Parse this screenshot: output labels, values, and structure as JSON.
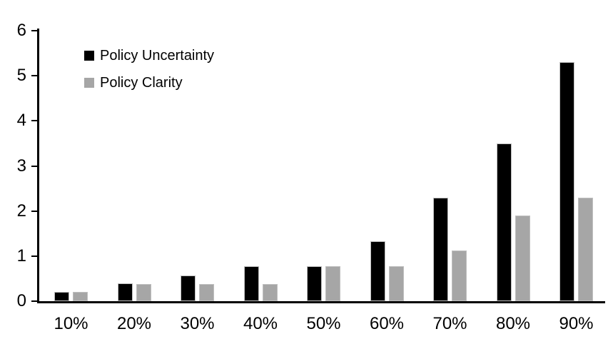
{
  "chart_data": {
    "type": "bar",
    "title": "",
    "xlabel": "",
    "ylabel": "",
    "categories": [
      "10%",
      "20%",
      "30%",
      "40%",
      "50%",
      "60%",
      "70%",
      "80%",
      "90%"
    ],
    "series": [
      {
        "name": "Policy Uncertainty",
        "color": "#000000",
        "values": [
          0.2,
          0.4,
          0.57,
          0.77,
          0.78,
          1.33,
          2.3,
          3.5,
          5.3
        ]
      },
      {
        "name": "Policy Clarity",
        "color": "#a6a6a6",
        "values": [
          0.2,
          0.38,
          0.38,
          0.38,
          0.77,
          0.77,
          1.13,
          1.9,
          2.3
        ]
      }
    ],
    "ylim": [
      0,
      6
    ],
    "yticks": [
      0,
      1,
      2,
      3,
      4,
      5,
      6
    ],
    "grid": false,
    "legend_position": "top-left-inside",
    "axis_color": "#000000",
    "background_color": "#ffffff"
  }
}
